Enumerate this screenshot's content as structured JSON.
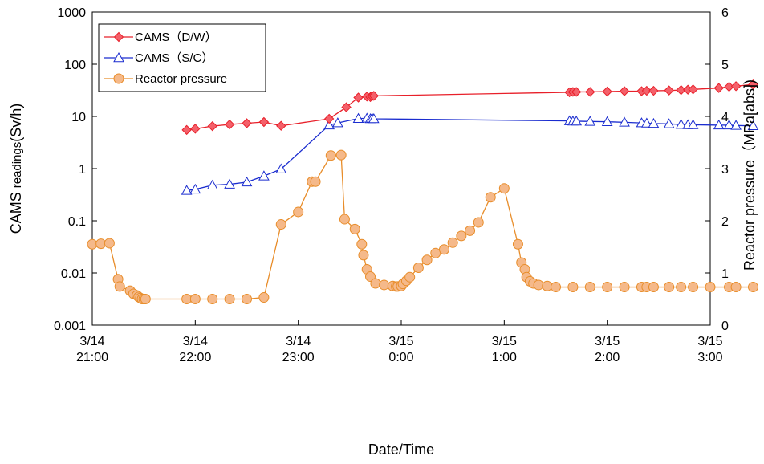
{
  "chart_data": {
    "type": "line",
    "x_axis": {
      "label": "Date/Time",
      "ticks": [
        {
          "x": 0,
          "line1": "3/14",
          "line2": "21:00"
        },
        {
          "x": 60,
          "line1": "3/14",
          "line2": "22:00"
        },
        {
          "x": 120,
          "line1": "3/14",
          "line2": "23:00"
        },
        {
          "x": 180,
          "line1": "3/15",
          "line2": "0:00"
        },
        {
          "x": 240,
          "line1": "3/15",
          "line2": "1:00"
        },
        {
          "x": 300,
          "line1": "3/15",
          "line2": "2:00"
        },
        {
          "x": 360,
          "line1": "3/15",
          "line2": "3:00"
        }
      ],
      "range_minutes": [
        0,
        360
      ],
      "origin": "3/14 21:00",
      "unit": "minutes"
    },
    "y_left": {
      "label_main": "CAMS ",
      "label_small": "readings",
      "label_end": "(Sv/h)",
      "scale": "log",
      "range": [
        0.001,
        1000
      ],
      "ticks": [
        "0.001",
        "0.01",
        "0.1",
        "1",
        "10",
        "100",
        "1000"
      ]
    },
    "y_right": {
      "label": "Reactor pressure（MPa[abs])",
      "scale": "linear",
      "range": [
        0,
        6
      ],
      "ticks": [
        "0",
        "1",
        "2",
        "3",
        "4",
        "5",
        "6"
      ]
    },
    "legend": {
      "position": "top-left",
      "entries": [
        {
          "label": "CAMS（D/W）",
          "series": "dw"
        },
        {
          "label": "CAMS（S/C）",
          "series": "sc"
        },
        {
          "label": "Reactor pressure",
          "series": "rp"
        }
      ]
    },
    "series": [
      {
        "id": "dw",
        "name": "CAMS（D/W）",
        "axis": "left",
        "color": "#e8202a",
        "fill": "#f4606a",
        "marker": "diamond",
        "points": [
          [
            55,
            5.5
          ],
          [
            60,
            5.8
          ],
          [
            70,
            6.5
          ],
          [
            80,
            7.0
          ],
          [
            90,
            7.4
          ],
          [
            100,
            7.8
          ],
          [
            110,
            6.6
          ],
          [
            138,
            9.0
          ],
          [
            148,
            15
          ],
          [
            155,
            23
          ],
          [
            160,
            24
          ],
          [
            162,
            23.5
          ],
          [
            163,
            24.5
          ],
          [
            164,
            24.8
          ],
          [
            278,
            29
          ],
          [
            280,
            29.5
          ],
          [
            282,
            29.5
          ],
          [
            290,
            29.5
          ],
          [
            300,
            30
          ],
          [
            310,
            30.5
          ],
          [
            320,
            30.5
          ],
          [
            323,
            31
          ],
          [
            327,
            31
          ],
          [
            336,
            31.5
          ],
          [
            343,
            32
          ],
          [
            347,
            32.5
          ],
          [
            350,
            33
          ],
          [
            365,
            35
          ],
          [
            371,
            37
          ],
          [
            375,
            38
          ],
          [
            385,
            41
          ]
        ]
      },
      {
        "id": "sc",
        "name": "CAMS（S/C）",
        "axis": "left",
        "color": "#1a2ccf",
        "fill": "#ffffff",
        "marker": "triangle",
        "points": [
          [
            55,
            0.38
          ],
          [
            60,
            0.4
          ],
          [
            70,
            0.48
          ],
          [
            80,
            0.5
          ],
          [
            90,
            0.55
          ],
          [
            100,
            0.72
          ],
          [
            110,
            0.98
          ],
          [
            138,
            6.8
          ],
          [
            143,
            7.5
          ],
          [
            155,
            9.1
          ],
          [
            160,
            9.2
          ],
          [
            162,
            9.0
          ],
          [
            163,
            9.2
          ],
          [
            164,
            9.0
          ],
          [
            278,
            8.2
          ],
          [
            280,
            8.1
          ],
          [
            282,
            8.1
          ],
          [
            290,
            8.0
          ],
          [
            300,
            7.9
          ],
          [
            310,
            7.7
          ],
          [
            320,
            7.5
          ],
          [
            323,
            7.4
          ],
          [
            327,
            7.3
          ],
          [
            336,
            7.2
          ],
          [
            343,
            7.0
          ],
          [
            347,
            6.9
          ],
          [
            350,
            6.9
          ],
          [
            365,
            6.8
          ],
          [
            371,
            6.8
          ],
          [
            375,
            6.7
          ],
          [
            385,
            6.6
          ]
        ]
      },
      {
        "id": "rp",
        "name": "Reactor pressure",
        "axis": "right",
        "color": "#e88d2a",
        "fill": "#f5b98a",
        "marker": "circle",
        "points": [
          [
            0,
            1.55
          ],
          [
            5,
            1.56
          ],
          [
            10,
            1.57
          ],
          [
            15,
            0.88
          ],
          [
            16,
            0.74
          ],
          [
            22,
            0.66
          ],
          [
            24,
            0.6
          ],
          [
            26,
            0.57
          ],
          [
            27,
            0.54
          ],
          [
            28,
            0.52
          ],
          [
            29,
            0.5
          ],
          [
            30,
            0.5
          ],
          [
            31,
            0.5
          ],
          [
            55,
            0.5
          ],
          [
            60,
            0.5
          ],
          [
            70,
            0.5
          ],
          [
            80,
            0.5
          ],
          [
            90,
            0.5
          ],
          [
            100,
            0.53
          ],
          [
            110,
            1.93
          ],
          [
            120,
            2.17
          ],
          [
            128,
            2.75
          ],
          [
            130,
            2.75
          ],
          [
            139,
            3.25
          ],
          [
            145,
            3.26
          ],
          [
            147,
            2.03
          ],
          [
            153,
            1.84
          ],
          [
            157,
            1.55
          ],
          [
            158,
            1.34
          ],
          [
            160,
            1.07
          ],
          [
            162,
            0.93
          ],
          [
            165,
            0.8
          ],
          [
            170,
            0.77
          ],
          [
            175,
            0.75
          ],
          [
            177,
            0.74
          ],
          [
            178,
            0.74
          ],
          [
            180,
            0.75
          ],
          [
            181,
            0.79
          ],
          [
            183,
            0.85
          ],
          [
            185,
            0.92
          ],
          [
            190,
            1.1
          ],
          [
            195,
            1.25
          ],
          [
            200,
            1.38
          ],
          [
            205,
            1.45
          ],
          [
            210,
            1.58
          ],
          [
            215,
            1.71
          ],
          [
            220,
            1.81
          ],
          [
            225,
            1.97
          ],
          [
            232,
            2.45
          ],
          [
            240,
            2.62
          ],
          [
            248,
            1.55
          ],
          [
            250,
            1.2
          ],
          [
            252,
            1.07
          ],
          [
            253,
            0.92
          ],
          [
            255,
            0.84
          ],
          [
            257,
            0.8
          ],
          [
            260,
            0.77
          ],
          [
            265,
            0.75
          ],
          [
            270,
            0.73
          ],
          [
            280,
            0.73
          ],
          [
            290,
            0.73
          ],
          [
            300,
            0.73
          ],
          [
            310,
            0.73
          ],
          [
            320,
            0.73
          ],
          [
            323,
            0.73
          ],
          [
            327,
            0.73
          ],
          [
            336,
            0.73
          ],
          [
            343,
            0.73
          ],
          [
            350,
            0.73
          ],
          [
            360,
            0.73
          ],
          [
            371,
            0.73
          ],
          [
            375,
            0.73
          ],
          [
            385,
            0.73
          ]
        ]
      }
    ],
    "grid": false
  }
}
